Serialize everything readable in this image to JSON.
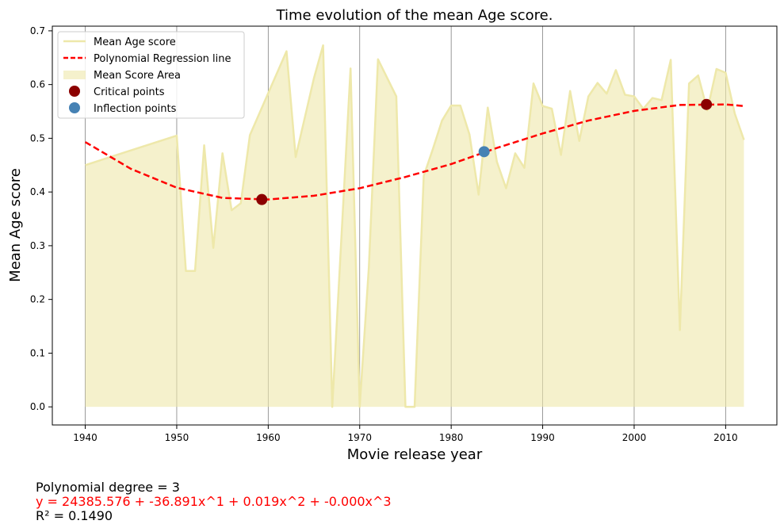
{
  "chart_data": {
    "type": "line",
    "title": "Time evolution of the mean Age score.",
    "xlabel": "Movie release year",
    "ylabel": "Mean Age score",
    "xlim": [
      1936.4,
      2015.6
    ],
    "ylim": [
      -0.0337,
      0.7087
    ],
    "x_ticks": [
      1940,
      1950,
      1960,
      1970,
      1980,
      1990,
      2000,
      2010
    ],
    "y_ticks": [
      0.0,
      0.1,
      0.2,
      0.3,
      0.4,
      0.5,
      0.6,
      0.7
    ],
    "x_tick_labels": [
      "1940",
      "1950",
      "1960",
      "1970",
      "1980",
      "1990",
      "2000",
      "2010"
    ],
    "y_tick_labels": [
      "0.0",
      "0.1",
      "0.2",
      "0.3",
      "0.4",
      "0.5",
      "0.6",
      "0.7"
    ],
    "vertical_grid": true,
    "legend_position": "top-left",
    "series": [
      {
        "name": "Mean Age score",
        "kind": "line",
        "color": "#eee8aa",
        "x": [
          1940,
          1950,
          1951,
          1952,
          1953,
          1954,
          1955,
          1956,
          1957,
          1958,
          1962,
          1963,
          1965,
          1966,
          1967,
          1969,
          1970,
          1971,
          1972,
          1974,
          1975,
          1976,
          1977,
          1978,
          1979,
          1980,
          1981,
          1982,
          1983,
          1984,
          1985,
          1986,
          1987,
          1988,
          1989,
          1990,
          1991,
          1992,
          1993,
          1994,
          1995,
          1996,
          1997,
          1998,
          1999,
          2000,
          2001,
          2002,
          2003,
          2004,
          2005,
          2006,
          2007,
          2008,
          2009,
          2010,
          2011,
          2012
        ],
        "y": [
          0.45,
          0.505,
          0.253,
          0.253,
          0.487,
          0.296,
          0.472,
          0.366,
          0.379,
          0.506,
          0.662,
          0.465,
          0.612,
          0.673,
          0.0,
          0.63,
          0.0,
          0.26,
          0.647,
          0.578,
          0.0,
          0.0,
          0.43,
          0.48,
          0.533,
          0.561,
          0.561,
          0.507,
          0.395,
          0.557,
          0.456,
          0.407,
          0.472,
          0.445,
          0.602,
          0.56,
          0.555,
          0.469,
          0.588,
          0.495,
          0.578,
          0.603,
          0.583,
          0.627,
          0.581,
          0.578,
          0.555,
          0.575,
          0.571,
          0.646,
          0.143,
          0.602,
          0.617,
          0.552,
          0.629,
          0.622,
          0.546,
          0.497
        ]
      },
      {
        "name": "Polynomial Regression line",
        "kind": "dashed-line",
        "color": "#ff0000",
        "x": [
          1940,
          1945,
          1950,
          1955,
          1960,
          1965,
          1970,
          1975,
          1980,
          1985,
          1990,
          1995,
          2000,
          2005,
          2010,
          2012
        ],
        "y": [
          0.493,
          0.443,
          0.408,
          0.389,
          0.386,
          0.393,
          0.407,
          0.428,
          0.452,
          0.482,
          0.509,
          0.533,
          0.551,
          0.562,
          0.563,
          0.56
        ]
      },
      {
        "name": "Mean Score Area",
        "kind": "area",
        "color": "#eee8aa",
        "opacity": 0.6
      },
      {
        "name": "Critical points",
        "kind": "scatter",
        "color": "#8b0000",
        "x": [
          1959.3,
          2007.9
        ],
        "y": [
          0.386,
          0.563
        ]
      },
      {
        "name": "Inflection points",
        "kind": "scatter",
        "color": "#4682b4",
        "x": [
          1983.6
        ],
        "y": [
          0.475
        ]
      }
    ]
  },
  "footer": {
    "degree_text": "Polynomial degree = 3",
    "equation_text": "y = 24385.576 + -36.891x^1 + 0.019x^2 + -0.000x^3",
    "r2_text": "R² = 0.1490",
    "equation_color": "#ff0000"
  }
}
